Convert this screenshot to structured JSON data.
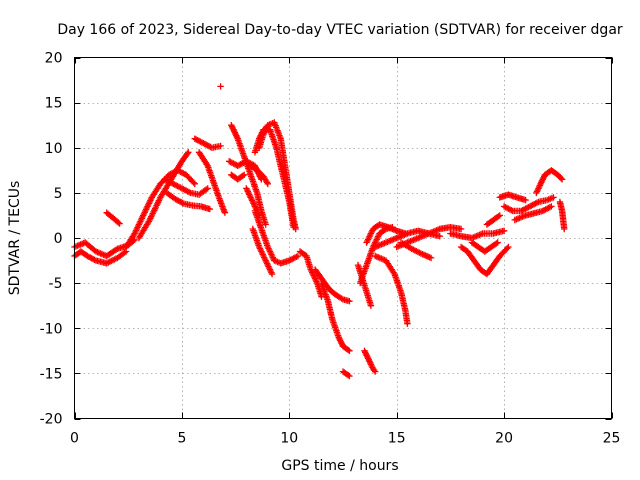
{
  "chart_data": {
    "type": "scatter",
    "title": "Day 166 of 2023, Sidereal Day-to-day VTEC variation (SDTVAR) for receiver dgar",
    "xlabel": "GPS time / hours",
    "ylabel": "SDTVAR / TECUs",
    "xlim": [
      0,
      25
    ],
    "ylim": [
      -20,
      20
    ],
    "xticks": [
      0,
      5,
      10,
      15,
      20,
      25
    ],
    "yticks": [
      -20,
      -15,
      -10,
      -5,
      0,
      5,
      10,
      15,
      20
    ],
    "grid": true,
    "marker": "+",
    "color": "#ff0000",
    "tracks": [
      [
        [
          0.0,
          -2.0
        ],
        [
          0.3,
          -1.5
        ],
        [
          0.6,
          -2.0
        ],
        [
          1.0,
          -2.5
        ],
        [
          1.5,
          -2.8
        ],
        [
          2.0,
          -2.2
        ],
        [
          2.4,
          -1.5
        ]
      ],
      [
        [
          0.0,
          -1.0
        ],
        [
          0.5,
          -0.5
        ],
        [
          1.0,
          -1.5
        ],
        [
          1.5,
          -2.0
        ],
        [
          2.0,
          -1.2
        ],
        [
          2.5,
          -0.8
        ],
        [
          2.8,
          -0.2
        ]
      ],
      [
        [
          1.5,
          2.8
        ],
        [
          1.8,
          2.2
        ],
        [
          2.1,
          1.6
        ]
      ],
      [
        [
          2.4,
          -1.0
        ],
        [
          2.8,
          0.5
        ],
        [
          3.2,
          2.5
        ],
        [
          3.6,
          4.5
        ],
        [
          4.0,
          6.0
        ],
        [
          4.4,
          7.0
        ],
        [
          4.8,
          7.5
        ],
        [
          5.2,
          7.0
        ],
        [
          5.6,
          6.0
        ]
      ],
      [
        [
          3.0,
          0.0
        ],
        [
          3.5,
          2.0
        ],
        [
          4.0,
          4.5
        ],
        [
          4.5,
          6.5
        ],
        [
          5.0,
          8.5
        ],
        [
          5.3,
          9.5
        ]
      ],
      [
        [
          4.2,
          6.5
        ],
        [
          4.6,
          6.0
        ],
        [
          5.0,
          5.5
        ],
        [
          5.4,
          5.0
        ],
        [
          5.8,
          4.8
        ],
        [
          6.2,
          5.5
        ]
      ],
      [
        [
          4.3,
          5.0
        ],
        [
          4.7,
          4.3
        ],
        [
          5.1,
          3.8
        ],
        [
          5.5,
          3.6
        ],
        [
          5.9,
          3.5
        ],
        [
          6.3,
          3.2
        ]
      ],
      [
        [
          5.6,
          11.0
        ],
        [
          6.0,
          10.5
        ],
        [
          6.4,
          10.0
        ],
        [
          6.8,
          10.2
        ]
      ],
      [
        [
          5.8,
          9.5
        ],
        [
          6.2,
          8.0
        ],
        [
          6.5,
          6.0
        ],
        [
          6.8,
          4.0
        ],
        [
          7.0,
          2.8
        ]
      ],
      [
        [
          6.8,
          16.8
        ]
      ],
      [
        [
          7.3,
          12.5
        ],
        [
          7.6,
          11.0
        ],
        [
          7.9,
          9.0
        ],
        [
          8.2,
          7.0
        ],
        [
          8.5,
          5.0
        ],
        [
          8.7,
          3.0
        ],
        [
          8.9,
          1.5
        ]
      ],
      [
        [
          7.2,
          8.5
        ],
        [
          7.6,
          8.0
        ],
        [
          8.0,
          8.5
        ],
        [
          8.4,
          8.0
        ],
        [
          8.7,
          6.5
        ]
      ],
      [
        [
          7.3,
          7.0
        ],
        [
          7.6,
          6.5
        ],
        [
          7.9,
          7.0
        ]
      ],
      [
        [
          8.6,
          10.0
        ],
        [
          8.8,
          11.5
        ],
        [
          9.0,
          12.5
        ],
        [
          9.3,
          12.8
        ],
        [
          9.6,
          11.0
        ],
        [
          9.8,
          8.0
        ],
        [
          10.0,
          5.0
        ],
        [
          10.2,
          2.0
        ],
        [
          10.3,
          1.0
        ]
      ],
      [
        [
          8.4,
          9.5
        ],
        [
          8.6,
          11.0
        ],
        [
          8.8,
          12.0
        ],
        [
          9.1,
          12.0
        ],
        [
          9.4,
          10.0
        ],
        [
          9.7,
          7.0
        ],
        [
          10.0,
          4.0
        ],
        [
          10.2,
          1.2
        ]
      ],
      [
        [
          8.2,
          8.0
        ],
        [
          8.5,
          7.5
        ],
        [
          8.8,
          6.8
        ],
        [
          9.0,
          6.0
        ]
      ],
      [
        [
          8.0,
          5.5
        ],
        [
          8.3,
          4.0
        ],
        [
          8.6,
          2.5
        ]
      ],
      [
        [
          8.4,
          3.0
        ],
        [
          8.7,
          1.0
        ],
        [
          9.0,
          -1.0
        ],
        [
          9.3,
          -2.5
        ],
        [
          9.6,
          -2.8
        ],
        [
          10.0,
          -2.5
        ],
        [
          10.4,
          -2.0
        ]
      ],
      [
        [
          8.3,
          1.0
        ],
        [
          8.6,
          -1.0
        ],
        [
          8.9,
          -2.5
        ],
        [
          9.2,
          -4.0
        ]
      ],
      [
        [
          10.5,
          -1.5
        ],
        [
          10.8,
          -2.0
        ],
        [
          11.0,
          -3.5
        ],
        [
          11.3,
          -5.0
        ],
        [
          11.5,
          -6.5
        ]
      ],
      [
        [
          11.2,
          -3.5
        ],
        [
          11.5,
          -4.5
        ],
        [
          11.8,
          -5.5
        ],
        [
          12.0,
          -6.0
        ],
        [
          12.3,
          -6.5
        ],
        [
          12.5,
          -6.8
        ],
        [
          12.8,
          -7.0
        ]
      ],
      [
        [
          11.5,
          -5.0
        ],
        [
          11.8,
          -7.0
        ],
        [
          12.0,
          -9.0
        ],
        [
          12.3,
          -11.0
        ],
        [
          12.5,
          -12.0
        ],
        [
          12.8,
          -12.5
        ]
      ],
      [
        [
          12.5,
          -14.8
        ],
        [
          12.8,
          -15.3
        ]
      ],
      [
        [
          13.2,
          -3.0
        ],
        [
          13.4,
          -4.5
        ],
        [
          13.6,
          -6.0
        ],
        [
          13.8,
          -7.5
        ]
      ],
      [
        [
          13.3,
          -5.0
        ],
        [
          13.6,
          -3.0
        ],
        [
          13.9,
          -1.0
        ],
        [
          14.2,
          0.5
        ],
        [
          14.5,
          1.0
        ],
        [
          14.8,
          1.2
        ]
      ],
      [
        [
          13.6,
          -0.5
        ],
        [
          13.9,
          1.0
        ],
        [
          14.2,
          1.5
        ],
        [
          14.6,
          1.2
        ],
        [
          15.0,
          0.8
        ],
        [
          15.4,
          0.5
        ]
      ],
      [
        [
          13.5,
          -12.5
        ],
        [
          13.7,
          -13.5
        ],
        [
          13.9,
          -14.5
        ],
        [
          14.0,
          -14.8
        ]
      ],
      [
        [
          14.0,
          -2.0
        ],
        [
          14.5,
          -2.5
        ],
        [
          14.9,
          -4.0
        ],
        [
          15.2,
          -6.0
        ],
        [
          15.4,
          -8.0
        ],
        [
          15.5,
          -9.5
        ]
      ],
      [
        [
          14.0,
          -1.0
        ],
        [
          14.5,
          -0.5
        ],
        [
          15.0,
          0.0
        ],
        [
          15.5,
          0.5
        ],
        [
          16.0,
          0.8
        ],
        [
          16.5,
          0.5
        ],
        [
          17.0,
          0.2
        ]
      ],
      [
        [
          15.0,
          -1.0
        ],
        [
          15.5,
          -0.5
        ],
        [
          16.0,
          0.0
        ],
        [
          16.5,
          0.5
        ],
        [
          17.0,
          1.0
        ],
        [
          17.5,
          1.2
        ],
        [
          18.0,
          1.0
        ]
      ],
      [
        [
          15.2,
          -0.5
        ],
        [
          15.7,
          -1.2
        ],
        [
          16.2,
          -1.8
        ],
        [
          16.6,
          -2.2
        ]
      ],
      [
        [
          17.5,
          0.5
        ],
        [
          18.0,
          0.2
        ],
        [
          18.5,
          0.0
        ],
        [
          19.0,
          0.5
        ],
        [
          19.5,
          0.5
        ],
        [
          20.0,
          0.8
        ]
      ],
      [
        [
          18.0,
          -1.0
        ],
        [
          18.3,
          -1.5
        ],
        [
          18.6,
          -2.5
        ],
        [
          18.9,
          -3.5
        ],
        [
          19.2,
          -4.0
        ],
        [
          19.5,
          -3.0
        ],
        [
          19.8,
          -2.0
        ],
        [
          20.2,
          -1.0
        ]
      ],
      [
        [
          18.5,
          -0.5
        ],
        [
          18.8,
          -1.0
        ],
        [
          19.1,
          -1.5
        ],
        [
          19.4,
          -1.0
        ],
        [
          19.7,
          -0.5
        ]
      ],
      [
        [
          19.2,
          1.5
        ],
        [
          19.5,
          2.0
        ],
        [
          19.8,
          2.5
        ]
      ],
      [
        [
          19.8,
          4.5
        ],
        [
          20.2,
          4.8
        ],
        [
          20.6,
          4.5
        ],
        [
          21.0,
          4.2
        ]
      ],
      [
        [
          20.0,
          3.5
        ],
        [
          20.4,
          3.0
        ],
        [
          20.8,
          3.0
        ],
        [
          21.2,
          3.5
        ],
        [
          21.6,
          4.0
        ],
        [
          22.0,
          4.2
        ],
        [
          22.3,
          4.5
        ]
      ],
      [
        [
          20.5,
          2.0
        ],
        [
          21.0,
          2.5
        ],
        [
          21.5,
          2.8
        ],
        [
          21.8,
          3.0
        ],
        [
          22.2,
          3.5
        ]
      ],
      [
        [
          21.5,
          5.0
        ],
        [
          21.7,
          6.0
        ],
        [
          21.9,
          7.0
        ],
        [
          22.2,
          7.5
        ],
        [
          22.5,
          7.0
        ],
        [
          22.7,
          6.5
        ]
      ],
      [
        [
          22.6,
          4.0
        ],
        [
          22.7,
          3.0
        ],
        [
          22.75,
          2.0
        ],
        [
          22.8,
          1.0
        ]
      ]
    ]
  }
}
